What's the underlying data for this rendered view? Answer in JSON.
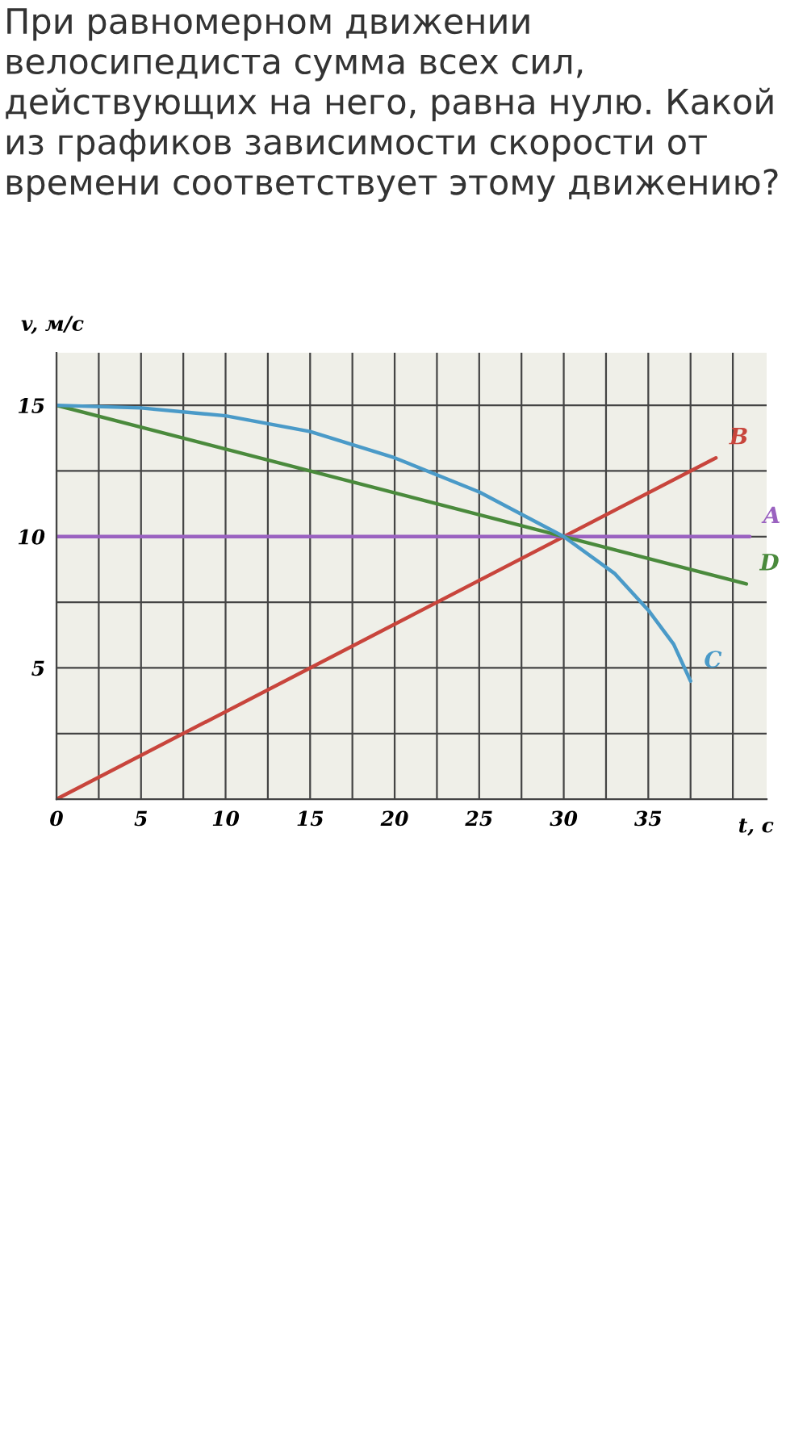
{
  "chart_data": {
    "type": "line",
    "title": "При равномерном движении велосипедиста сумма всех сил, действующих на него, равна нулю. Какой из графиков зависимости скорости от времени соответствует этому движению?",
    "xlabel": "t, c",
    "ylabel": "v, м/с",
    "series": [
      {
        "name": "B",
        "color": "#c8453c",
        "x": [
          0,
          39
        ],
        "values": [
          0,
          13
        ]
      },
      {
        "name": "A",
        "color": "#9a62c0",
        "x": [
          0,
          41
        ],
        "values": [
          10,
          10
        ]
      },
      {
        "name": "D",
        "color": "#4a8a3c",
        "x": [
          0,
          40.8
        ],
        "values": [
          15,
          8.2
        ]
      },
      {
        "name": "C",
        "color": "#4a9ac8",
        "x": [
          0,
          5,
          10,
          15,
          20,
          25,
          30,
          33,
          35,
          36.5,
          37.5
        ],
        "values": [
          15,
          14.9,
          14.6,
          14,
          13,
          11.7,
          10,
          8.6,
          7.2,
          5.9,
          4.5
        ]
      }
    ],
    "xlim": [
      0,
      42
    ],
    "ylim": [
      0,
      17
    ],
    "xticks": [
      0,
      {
        "value": 2.5,
        "label": null
      },
      5,
      {
        "value": 7.5,
        "label": null
      },
      10,
      {
        "value": 12.5,
        "label": null
      },
      15,
      {
        "value": 17.5,
        "label": null
      },
      20,
      {
        "value": 22.5,
        "label": null
      },
      25,
      {
        "value": 27.5,
        "label": null
      },
      30,
      {
        "value": 32.5,
        "label": null
      },
      35,
      {
        "value": 37.5,
        "label": null
      },
      {
        "value": 40,
        "label": null
      }
    ],
    "yticks": [
      {
        "value": 0,
        "label": null
      },
      {
        "value": 2.5,
        "label": null
      },
      5,
      {
        "value": 7.5,
        "label": null
      },
      10,
      {
        "value": 12.5,
        "label": null
      },
      15
    ],
    "grid": true,
    "marker": "none",
    "line_style": "solid",
    "legend": false
  }
}
